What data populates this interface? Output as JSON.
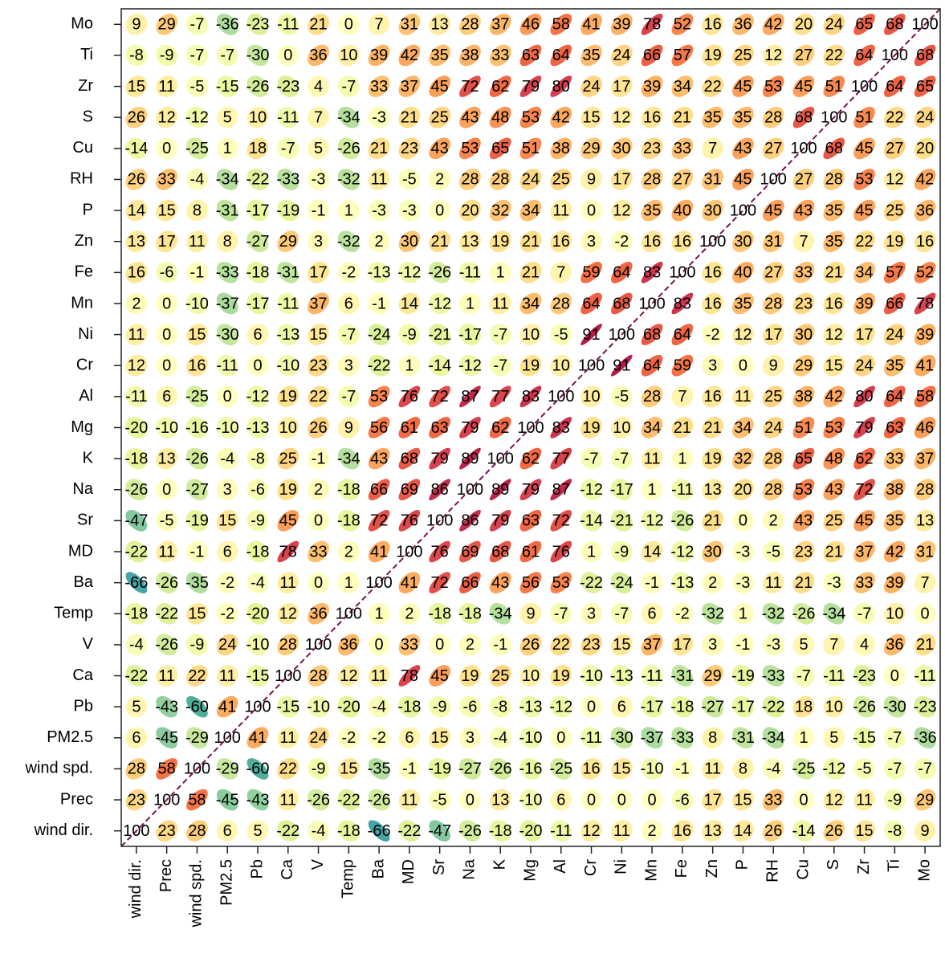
{
  "chart_data": {
    "type": "corrplot",
    "variables": [
      "wind dir.",
      "Prec",
      "wind spd.",
      "PM2.5",
      "Pb",
      "Ca",
      "V",
      "Temp",
      "Ba",
      "MD",
      "Sr",
      "Na",
      "K",
      "Mg",
      "Al",
      "Cr",
      "Ni",
      "Mn",
      "Fe",
      "Zn",
      "P",
      "RH",
      "Cu",
      "S",
      "Zr",
      "Ti",
      "Mo"
    ],
    "matrix": [
      [
        100,
        23,
        28,
        6,
        5,
        -22,
        -4,
        -18,
        -66,
        -22,
        -47,
        -26,
        -18,
        -20,
        -11,
        12,
        11,
        2,
        16,
        13,
        14,
        26,
        -14,
        26,
        15,
        -8,
        9
      ],
      [
        23,
        100,
        58,
        -45,
        -43,
        11,
        -26,
        -22,
        -26,
        11,
        -5,
        0,
        13,
        -10,
        6,
        0,
        0,
        0,
        -6,
        17,
        15,
        33,
        0,
        12,
        11,
        -9,
        29
      ],
      [
        28,
        58,
        100,
        -29,
        -60,
        22,
        -9,
        15,
        -35,
        -1,
        -19,
        -27,
        -26,
        -16,
        -25,
        16,
        15,
        -10,
        -1,
        11,
        8,
        -4,
        -25,
        -12,
        -5,
        -7,
        -7
      ],
      [
        6,
        -45,
        -29,
        100,
        41,
        11,
        24,
        -2,
        -2,
        6,
        15,
        3,
        -4,
        -10,
        0,
        -11,
        -30,
        -37,
        -33,
        8,
        -31,
        -34,
        1,
        5,
        -15,
        -7,
        -36
      ],
      [
        5,
        -43,
        -60,
        41,
        100,
        -15,
        -10,
        -20,
        -4,
        -18,
        -9,
        -6,
        -8,
        -13,
        -12,
        0,
        6,
        -17,
        -18,
        -27,
        -17,
        -22,
        18,
        10,
        -26,
        -30,
        -23
      ],
      [
        -22,
        11,
        22,
        11,
        -15,
        100,
        28,
        12,
        11,
        78,
        45,
        19,
        25,
        10,
        19,
        -10,
        -13,
        -11,
        -31,
        29,
        -19,
        -33,
        -7,
        -11,
        -23,
        0,
        -11
      ],
      [
        -4,
        -26,
        -9,
        24,
        -10,
        28,
        100,
        36,
        0,
        33,
        0,
        2,
        -1,
        26,
        22,
        23,
        15,
        37,
        17,
        3,
        -1,
        -3,
        5,
        7,
        4,
        36,
        21
      ],
      [
        -18,
        -22,
        15,
        -2,
        -20,
        12,
        36,
        100,
        1,
        2,
        -18,
        -18,
        -34,
        9,
        -7,
        3,
        -7,
        6,
        -2,
        -32,
        1,
        -32,
        -26,
        -34,
        -7,
        10,
        0
      ],
      [
        -66,
        -26,
        -35,
        -2,
        -4,
        11,
        0,
        1,
        100,
        41,
        72,
        66,
        43,
        56,
        53,
        -22,
        -24,
        -1,
        -13,
        2,
        -3,
        11,
        21,
        -3,
        33,
        39,
        7
      ],
      [
        -22,
        11,
        -1,
        6,
        -18,
        78,
        33,
        2,
        41,
        100,
        76,
        69,
        68,
        61,
        76,
        1,
        -9,
        14,
        -12,
        30,
        -3,
        -5,
        23,
        21,
        37,
        42,
        31
      ],
      [
        -47,
        -5,
        -19,
        15,
        -9,
        45,
        0,
        -18,
        72,
        76,
        100,
        86,
        79,
        63,
        72,
        -14,
        -21,
        -12,
        -26,
        21,
        0,
        2,
        43,
        25,
        45,
        35,
        13
      ],
      [
        -26,
        0,
        -27,
        3,
        -6,
        19,
        2,
        -18,
        66,
        69,
        86,
        100,
        89,
        79,
        87,
        -12,
        -17,
        1,
        -11,
        13,
        20,
        28,
        53,
        43,
        72,
        38,
        28
      ],
      [
        -18,
        13,
        -26,
        -4,
        -8,
        25,
        -1,
        -34,
        43,
        68,
        79,
        89,
        100,
        62,
        77,
        -7,
        -7,
        11,
        1,
        19,
        32,
        28,
        65,
        48,
        62,
        33,
        37
      ],
      [
        -20,
        -10,
        -16,
        -10,
        -13,
        10,
        26,
        9,
        56,
        61,
        63,
        79,
        62,
        100,
        83,
        19,
        10,
        34,
        21,
        21,
        34,
        24,
        51,
        53,
        79,
        63,
        46
      ],
      [
        -11,
        6,
        -25,
        0,
        -12,
        19,
        22,
        -7,
        53,
        76,
        72,
        87,
        77,
        83,
        100,
        10,
        -5,
        28,
        7,
        16,
        11,
        25,
        38,
        42,
        80,
        64,
        58
      ],
      [
        12,
        0,
        16,
        -11,
        0,
        -10,
        23,
        3,
        -22,
        1,
        -14,
        -12,
        -7,
        19,
        10,
        100,
        91,
        64,
        59,
        3,
        0,
        9,
        29,
        15,
        24,
        35,
        41
      ],
      [
        11,
        0,
        15,
        -30,
        6,
        -13,
        15,
        -7,
        -24,
        -9,
        -21,
        -17,
        -7,
        10,
        -5,
        91,
        100,
        68,
        64,
        -2,
        12,
        17,
        30,
        12,
        17,
        24,
        39
      ],
      [
        2,
        0,
        -10,
        -37,
        -17,
        -11,
        37,
        6,
        -1,
        14,
        -12,
        1,
        11,
        34,
        28,
        64,
        68,
        100,
        83,
        16,
        35,
        28,
        23,
        16,
        39,
        66,
        78
      ],
      [
        16,
        -6,
        -1,
        -33,
        -18,
        -31,
        17,
        -2,
        -13,
        -12,
        -26,
        -11,
        1,
        21,
        7,
        59,
        64,
        83,
        100,
        16,
        40,
        27,
        33,
        21,
        34,
        57,
        52
      ],
      [
        13,
        17,
        11,
        8,
        -27,
        29,
        3,
        -32,
        2,
        30,
        21,
        13,
        19,
        21,
        16,
        3,
        -2,
        16,
        16,
        100,
        30,
        31,
        7,
        35,
        22,
        19,
        16
      ],
      [
        14,
        15,
        8,
        -31,
        -17,
        -19,
        -1,
        1,
        -3,
        -3,
        0,
        20,
        32,
        34,
        11,
        0,
        12,
        35,
        40,
        30,
        100,
        45,
        43,
        35,
        45,
        25,
        36
      ],
      [
        26,
        33,
        -4,
        -34,
        -22,
        -33,
        -3,
        -32,
        11,
        -5,
        2,
        28,
        28,
        24,
        25,
        9,
        17,
        28,
        27,
        31,
        45,
        100,
        27,
        28,
        53,
        12,
        42
      ],
      [
        -14,
        0,
        -25,
        1,
        18,
        -7,
        5,
        -26,
        21,
        23,
        43,
        53,
        65,
        51,
        38,
        29,
        30,
        23,
        33,
        7,
        43,
        27,
        100,
        68,
        45,
        27,
        20
      ],
      [
        26,
        12,
        -12,
        5,
        10,
        -11,
        7,
        -34,
        -3,
        21,
        25,
        43,
        48,
        53,
        42,
        15,
        12,
        16,
        21,
        35,
        35,
        28,
        68,
        100,
        51,
        22,
        24
      ],
      [
        15,
        11,
        -5,
        -15,
        -26,
        -23,
        4,
        -7,
        33,
        37,
        45,
        72,
        62,
        79,
        80,
        24,
        17,
        39,
        34,
        22,
        45,
        53,
        45,
        51,
        100,
        64,
        65
      ],
      [
        -8,
        -9,
        -7,
        -7,
        -30,
        0,
        36,
        10,
        39,
        42,
        35,
        38,
        33,
        63,
        64,
        35,
        24,
        66,
        57,
        19,
        25,
        12,
        27,
        22,
        64,
        100,
        68
      ],
      [
        9,
        29,
        -7,
        -36,
        -23,
        -11,
        21,
        0,
        7,
        31,
        13,
        28,
        37,
        46,
        58,
        41,
        39,
        78,
        52,
        16,
        36,
        42,
        20,
        24,
        65,
        68,
        100
      ]
    ],
    "clim": [
      -100,
      100
    ],
    "colors": [
      "#5e4fa2",
      "#3288bd",
      "#4fae9c",
      "#9fd6a0",
      "#e6f598",
      "#ffffbf",
      "#fee08b",
      "#fdae61",
      "#f46d43",
      "#d53e4f",
      "#9e0142"
    ],
    "diagonal_color": "#7a1250"
  }
}
